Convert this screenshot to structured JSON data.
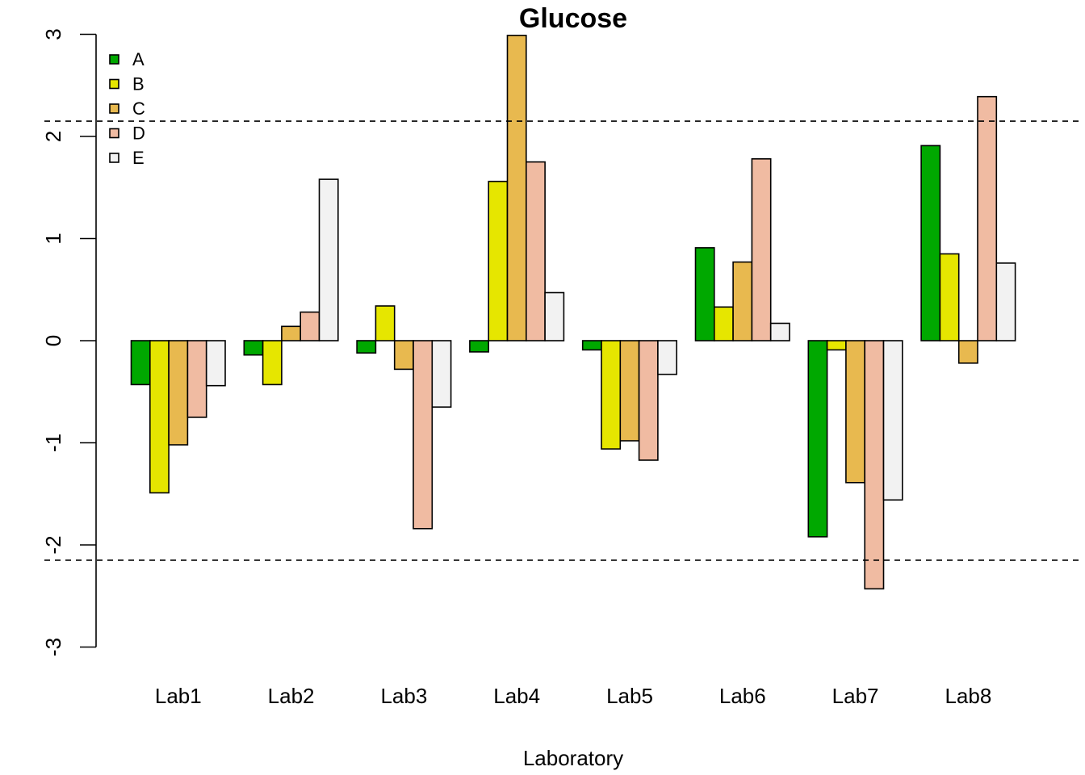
{
  "chart_data": {
    "type": "bar",
    "title": "Glucose",
    "xlabel": "Laboratory",
    "ylabel": "",
    "ylim": [
      -3,
      3
    ],
    "yticks": [
      "-3",
      "-2",
      "-1",
      "0",
      "1",
      "2",
      "3"
    ],
    "reference_lines": [
      2.15,
      -2.15
    ],
    "reference_line_style": "dashed",
    "legend_position": "top-left",
    "categories": [
      "Lab1",
      "Lab2",
      "Lab3",
      "Lab4",
      "Lab5",
      "Lab6",
      "Lab7",
      "Lab8"
    ],
    "series": [
      {
        "name": "A",
        "color": "#00a800",
        "values": [
          -0.43,
          -0.14,
          -0.12,
          -0.11,
          -0.09,
          0.91,
          -1.92,
          1.91
        ]
      },
      {
        "name": "B",
        "color": "#e6e600",
        "values": [
          -1.49,
          -0.43,
          0.34,
          1.56,
          -1.06,
          0.33,
          -0.09,
          0.85
        ]
      },
      {
        "name": "C",
        "color": "#e8b94f",
        "values": [
          -1.02,
          0.14,
          -0.28,
          2.99,
          -0.98,
          0.77,
          -1.39,
          -0.22
        ]
      },
      {
        "name": "D",
        "color": "#f0bba2",
        "values": [
          -0.75,
          0.28,
          -1.84,
          1.75,
          -1.17,
          1.78,
          -2.43,
          2.39
        ]
      },
      {
        "name": "E",
        "color": "#f2f2f2",
        "values": [
          -0.44,
          1.58,
          -0.65,
          0.47,
          -0.33,
          0.17,
          -1.56,
          0.76
        ]
      }
    ]
  }
}
